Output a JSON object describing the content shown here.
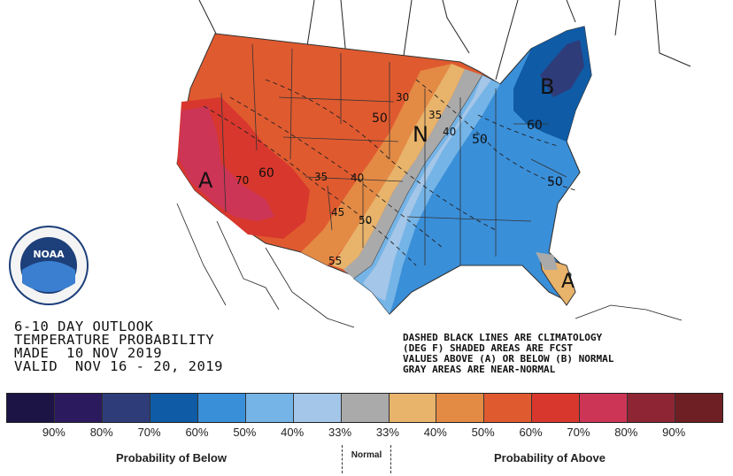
{
  "outlook": {
    "line1": "6-10 DAY OUTLOOK",
    "line2": "TEMPERATURE PROBABILITY",
    "line3": "MADE  10 NOV 2019",
    "line4": "VALID  NOV 16 - 20, 2019"
  },
  "notes": {
    "line1": "DASHED BLACK LINES ARE CLIMATOLOGY",
    "line2": "(DEG F) SHADED AREAS ARE FCST",
    "line3": "VALUES ABOVE (A) OR BELOW (B) NORMAL",
    "line4": "GRAY AREAS ARE NEAR-NORMAL"
  },
  "map_labels": {
    "above_west": "A",
    "above_florida": "A",
    "below_northeast": "B",
    "near_normal": "N",
    "clim_30": "30",
    "clim_35a": "35",
    "clim_35b": "35",
    "clim_40a": "40",
    "clim_40b": "40",
    "clim_45": "45",
    "clim_50a": "50",
    "clim_50b": "50",
    "clim_50c": "50",
    "clim_50d": "50",
    "clim_55": "55",
    "clim_60a": "60",
    "clim_60b": "60",
    "clim_70": "70"
  },
  "legend": {
    "colors": [
      "#1d1446",
      "#2b1b5e",
      "#2e3c7a",
      "#0f5ba6",
      "#3a8fd9",
      "#75b4e6",
      "#a4c6e8",
      "#aaaaaa",
      "#e8b36a",
      "#e38a45",
      "#e05a2f",
      "#d8372d",
      "#cc3556",
      "#8e2534",
      "#6e1f24"
    ],
    "labels": [
      "90%",
      "80%",
      "70%",
      "60%",
      "50%",
      "40%",
      "33%",
      "33%",
      "40%",
      "50%",
      "60%",
      "70%",
      "80%",
      "90%"
    ],
    "below_caption": "Probability of Below",
    "normal_caption": "Normal",
    "above_caption": "Probability of Above"
  },
  "logo": {
    "text": "NOAA"
  },
  "colors": {
    "above_33": "#e8b36a",
    "above_40": "#e38a45",
    "above_50": "#e05a2f",
    "above_60": "#d8372d",
    "above_70": "#cc3556",
    "near_normal": "#aaaaaa",
    "below_33": "#a4c6e8",
    "below_40": "#75b4e6",
    "below_50": "#3a8fd9",
    "below_60": "#0f5ba6",
    "below_70": "#2e3c7a"
  }
}
